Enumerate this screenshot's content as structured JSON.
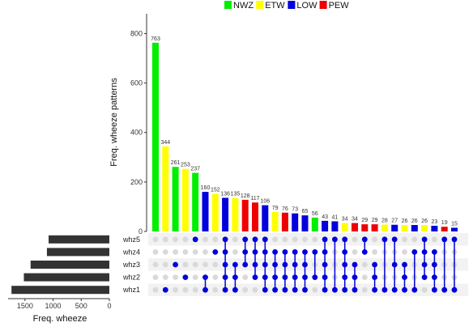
{
  "chart_data": {
    "type": "bar",
    "subtype": "upset",
    "legend": {
      "placement": "top",
      "entries": [
        {
          "name": "NWZ",
          "color": "#00ee00"
        },
        {
          "name": "ETW",
          "color": "#ffff00"
        },
        {
          "name": "LOW",
          "color": "#0000dd"
        },
        {
          "name": "PEW",
          "color": "#ee0000"
        }
      ]
    },
    "ylabel": "Freq. wheeze patterns",
    "ylim": [
      0,
      880
    ],
    "yticks": [
      0,
      200,
      400,
      600,
      800
    ],
    "xlabel_sets": "Freq. wheeze",
    "set_xlim": [
      0,
      1800
    ],
    "set_xticks": [
      0,
      500,
      1000,
      1500
    ],
    "sets": [
      {
        "name": "whz5",
        "size": 1080
      },
      {
        "name": "whz4",
        "size": 1110
      },
      {
        "name": "whz3",
        "size": 1400
      },
      {
        "name": "whz2",
        "size": 1520
      },
      {
        "name": "whz1",
        "size": 1740
      }
    ],
    "intersections": [
      {
        "value": 763,
        "label": "763",
        "group": "NWZ",
        "sets": []
      },
      {
        "value": 344,
        "label": "344",
        "group": "ETW",
        "sets": [
          "whz1"
        ]
      },
      {
        "value": 261,
        "label": "261",
        "group": "NWZ",
        "sets": [
          "whz3"
        ]
      },
      {
        "value": 253,
        "label": "253",
        "group": "ETW",
        "sets": [
          "whz2"
        ]
      },
      {
        "value": 237,
        "label": "237",
        "group": "NWZ",
        "sets": [
          "whz5"
        ]
      },
      {
        "value": 160,
        "label": "160",
        "group": "LOW",
        "sets": [
          "whz1",
          "whz2"
        ]
      },
      {
        "value": 152,
        "label": "152",
        "group": "ETW",
        "sets": [
          "whz4"
        ]
      },
      {
        "value": 136,
        "label": "136",
        "group": "LOW",
        "sets": [
          "whz1",
          "whz2",
          "whz3",
          "whz4",
          "whz5"
        ]
      },
      {
        "value": 135,
        "label": "135",
        "group": "ETW",
        "sets": [
          "whz1",
          "whz2",
          "whz3"
        ]
      },
      {
        "value": 128,
        "label": "128",
        "group": "PEW",
        "sets": [
          "whz3",
          "whz4",
          "whz5"
        ]
      },
      {
        "value": 117,
        "label": "117",
        "group": "PEW",
        "sets": [
          "whz2",
          "whz3",
          "whz4",
          "whz5"
        ]
      },
      {
        "value": 106,
        "label": "106",
        "group": "LOW",
        "sets": [
          "whz1",
          "whz2",
          "whz3",
          "whz4",
          "whz5"
        ]
      },
      {
        "value": 79,
        "label": "79",
        "group": "ETW",
        "sets": [
          "whz1",
          "whz2",
          "whz3",
          "whz4"
        ]
      },
      {
        "value": 76,
        "label": "76",
        "group": "PEW",
        "sets": [
          "whz1",
          "whz2",
          "whz3",
          "whz4"
        ]
      },
      {
        "value": 73,
        "label": "73",
        "group": "LOW",
        "sets": [
          "whz1",
          "whz2",
          "whz3",
          "whz4"
        ]
      },
      {
        "value": 65,
        "label": "65",
        "group": "LOW",
        "sets": [
          "whz1",
          "whz2",
          "whz3",
          "whz4"
        ]
      },
      {
        "value": 56,
        "label": "56",
        "group": "NWZ",
        "sets": [
          "whz2",
          "whz4"
        ]
      },
      {
        "value": 43,
        "label": "43",
        "group": "LOW",
        "sets": [
          "whz1",
          "whz2",
          "whz3",
          "whz4",
          "whz5"
        ]
      },
      {
        "value": 41,
        "label": "41",
        "group": "LOW",
        "sets": [
          "whz1",
          "whz5"
        ]
      },
      {
        "value": 34,
        "label": "34",
        "group": "ETW",
        "sets": [
          "whz1",
          "whz2",
          "whz3",
          "whz4",
          "whz5"
        ]
      },
      {
        "value": 34,
        "label": "34",
        "group": "PEW",
        "sets": [
          "whz1",
          "whz2",
          "whz3"
        ]
      },
      {
        "value": 29,
        "label": "29",
        "group": "PEW",
        "sets": [
          "whz4",
          "whz5"
        ]
      },
      {
        "value": 29,
        "label": "29",
        "group": "PEW",
        "sets": [
          "whz1",
          "whz2",
          "whz3"
        ]
      },
      {
        "value": 28,
        "label": "28",
        "group": "ETW",
        "sets": [
          "whz1",
          "whz5"
        ]
      },
      {
        "value": 27,
        "label": "27",
        "group": "LOW",
        "sets": [
          "whz1",
          "whz3",
          "whz5"
        ]
      },
      {
        "value": 26,
        "label": "26",
        "group": "ETW",
        "sets": [
          "whz1",
          "whz2",
          "whz3"
        ]
      },
      {
        "value": 26,
        "label": "26",
        "group": "LOW",
        "sets": [
          "whz1",
          "whz4"
        ]
      },
      {
        "value": 26,
        "label": "26",
        "group": "ETW",
        "sets": [
          "whz2",
          "whz3",
          "whz4",
          "whz5"
        ]
      },
      {
        "value": 23,
        "label": "23",
        "group": "LOW",
        "sets": [
          "whz1",
          "whz2",
          "whz3",
          "whz4"
        ]
      },
      {
        "value": 19,
        "label": "19",
        "group": "PEW",
        "sets": [
          "whz1",
          "whz5"
        ]
      },
      {
        "value": 15,
        "label": "15",
        "group": "LOW",
        "sets": [
          "whz1",
          "whz5"
        ]
      }
    ]
  }
}
